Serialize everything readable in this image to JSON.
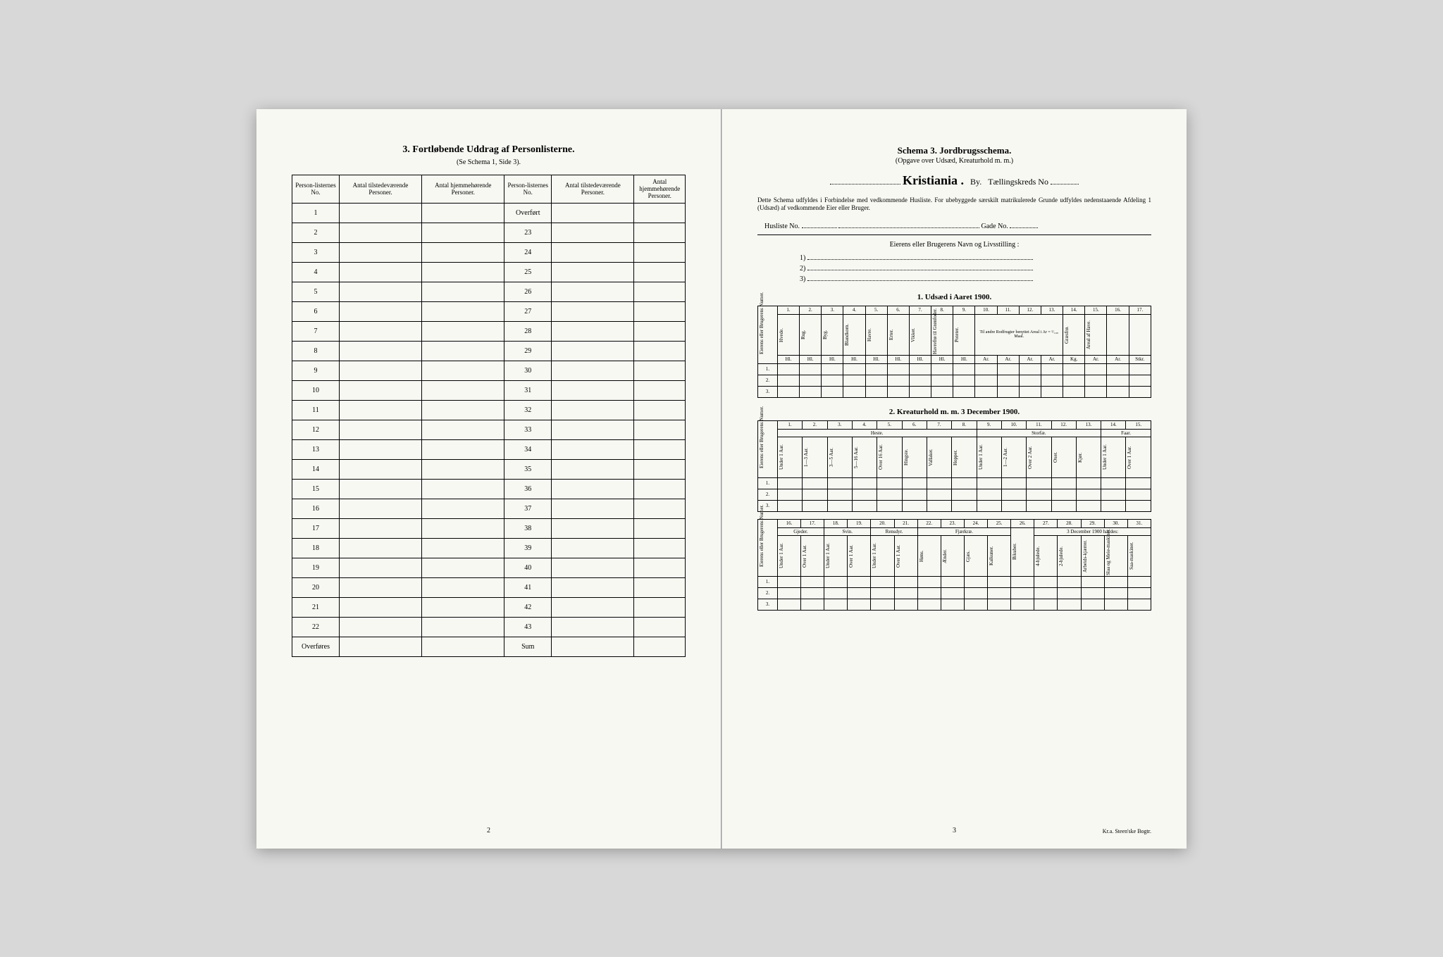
{
  "left_page": {
    "title": "3.  Fortløbende Uddrag af Personlisterne.",
    "subtitle": "(Se Schema 1, Side 3).",
    "headers": {
      "col1": "Person-listernes No.",
      "col2": "Antal tilstedeværende Personer.",
      "col3": "Antal hjemmehørende Personer.",
      "col4": "Person-listernes No.",
      "col5": "Antal tilstedeværende Personer.",
      "col6": "Antal hjemmehørende Personer."
    },
    "left_rows": [
      "1",
      "2",
      "3",
      "4",
      "5",
      "6",
      "7",
      "8",
      "9",
      "10",
      "11",
      "12",
      "13",
      "14",
      "15",
      "16",
      "17",
      "18",
      "19",
      "20",
      "21",
      "22",
      "Overføres"
    ],
    "right_rows": [
      "Overført",
      "23",
      "24",
      "25",
      "26",
      "27",
      "28",
      "29",
      "30",
      "31",
      "32",
      "33",
      "34",
      "35",
      "36",
      "37",
      "38",
      "39",
      "40",
      "41",
      "42",
      "43",
      "Sum"
    ],
    "page_num": "2"
  },
  "right_page": {
    "schema_title": "Schema 3.   Jordbrugsschema.",
    "schema_sub": "(Opgave over Udsæd, Kreaturhold m. m.)",
    "city": "Kristiania .",
    "by": "By.",
    "kreds_label": "Tællingskreds No",
    "intro": "Dette Schema udfyldes i Forbindelse med vedkommende Husliste.  For ubebyggede særskilt matrikulerede Grunde udfyldes nedenstaaende Afdeling 1 (Udsæd) af vedkommende Eier eller Bruger.",
    "husliste": "Husliste No.",
    "gade": "Gade No.",
    "eier_label": "Eierens eller Brugerens Navn og Livsstilling :",
    "nums": [
      "1)",
      "2)",
      "3)"
    ],
    "section1": "1.  Udsæd i Aaret 1900.",
    "section2": "2.  Kreaturhold m. m. 3 December 1900.",
    "table1": {
      "nums": [
        "1.",
        "2.",
        "3.",
        "4.",
        "5.",
        "6.",
        "7.",
        "8.",
        "9.",
        "10.",
        "11.",
        "12.",
        "13.",
        "14.",
        "15.",
        "16.",
        "17."
      ],
      "rowhead": "Eierens eller Brugerens Numer.",
      "cols": [
        "Hvede.",
        "Rug.",
        "Byg.",
        "Blandkorn.",
        "Havre.",
        "Erter.",
        "Vikker.",
        "Havrefrø til Grønfoder.",
        "Poteter.",
        "Gulerødder.",
        "Turnips.",
        "Kaalrabi.",
        "Græsfrø.",
        "Areal af Have."
      ],
      "group": "Til andre Rodfrugter benyttet Areal i Ar = ¹/₁₀₀ Maal.",
      "units": [
        "Hl.",
        "Hl.",
        "Hl.",
        "Hl.",
        "Hl.",
        "Hl.",
        "Hl.",
        "Hl.",
        "Hl.",
        "Ar.",
        "Ar.",
        "Ar.",
        "Ar.",
        "Kg.",
        "Ar.",
        "Ar.",
        "Stkr."
      ],
      "rows": [
        "1.",
        "2.",
        "3."
      ]
    },
    "table2": {
      "nums": [
        "1.",
        "2.",
        "3.",
        "4.",
        "5.",
        "6.",
        "7.",
        "8.",
        "9.",
        "10.",
        "11.",
        "12.",
        "13.",
        "14.",
        "15."
      ],
      "rowhead": "Eierens eller Brugerens Numer.",
      "groups": [
        "Heste.",
        "Storfæ.",
        "Faar."
      ],
      "sub_af": "Af de over 3 Aar gamle var:",
      "sub_af2": "Af de over 2 Aar gamle var:",
      "cols": [
        "Under 1 Aar.",
        "1—3 Aar.",
        "3—5 Aar.",
        "5—16 Aar.",
        "Over 16 Aar.",
        "Hingste.",
        "Vallaker.",
        "Hopper.",
        "Under 1 Aar.",
        "1—2 Aar.",
        "Over 2 Aar.",
        "Oxer.",
        "Kjør.",
        "Under 1 Aar.",
        "Over 1 Aar."
      ],
      "rows": [
        "1.",
        "2.",
        "3."
      ]
    },
    "table3": {
      "nums": [
        "16.",
        "17.",
        "18.",
        "19.",
        "20.",
        "21.",
        "22.",
        "23.",
        "24.",
        "25.",
        "26.",
        "27.",
        "28.",
        "29.",
        "30.",
        "31."
      ],
      "rowhead": "Eierens eller Brugerens Numer.",
      "groups": [
        "Gjeder.",
        "Svin.",
        "Rensdyr.",
        "Fjærkræ.",
        "3 December 1900 havdes:"
      ],
      "sub_arb": "Arbeidsvogne (Slæder ikke medregnet).",
      "cols": [
        "Under 1 Aar.",
        "Over 1 Aar.",
        "Under 1 Aar.",
        "Over 1 Aar.",
        "Under 1 Aar.",
        "Over 1 Aar.",
        "Høns.",
        "Ænder.",
        "Gjæs.",
        "Kalkuner.",
        "Bikuber.",
        "4-hjulede.",
        "2-hjulede.",
        "Arbeids-kjærrer.",
        "Slaa og Meie-maskiner.",
        "Saa-maskiner."
      ],
      "rows": [
        "1.",
        "2.",
        "3."
      ]
    },
    "page_num": "3",
    "printer": "Kr.a.  Steen'ske Bogtr."
  },
  "colors": {
    "page_bg": "#f8f8f3",
    "desk_bg": "#d8d8d8",
    "border": "#000000"
  }
}
